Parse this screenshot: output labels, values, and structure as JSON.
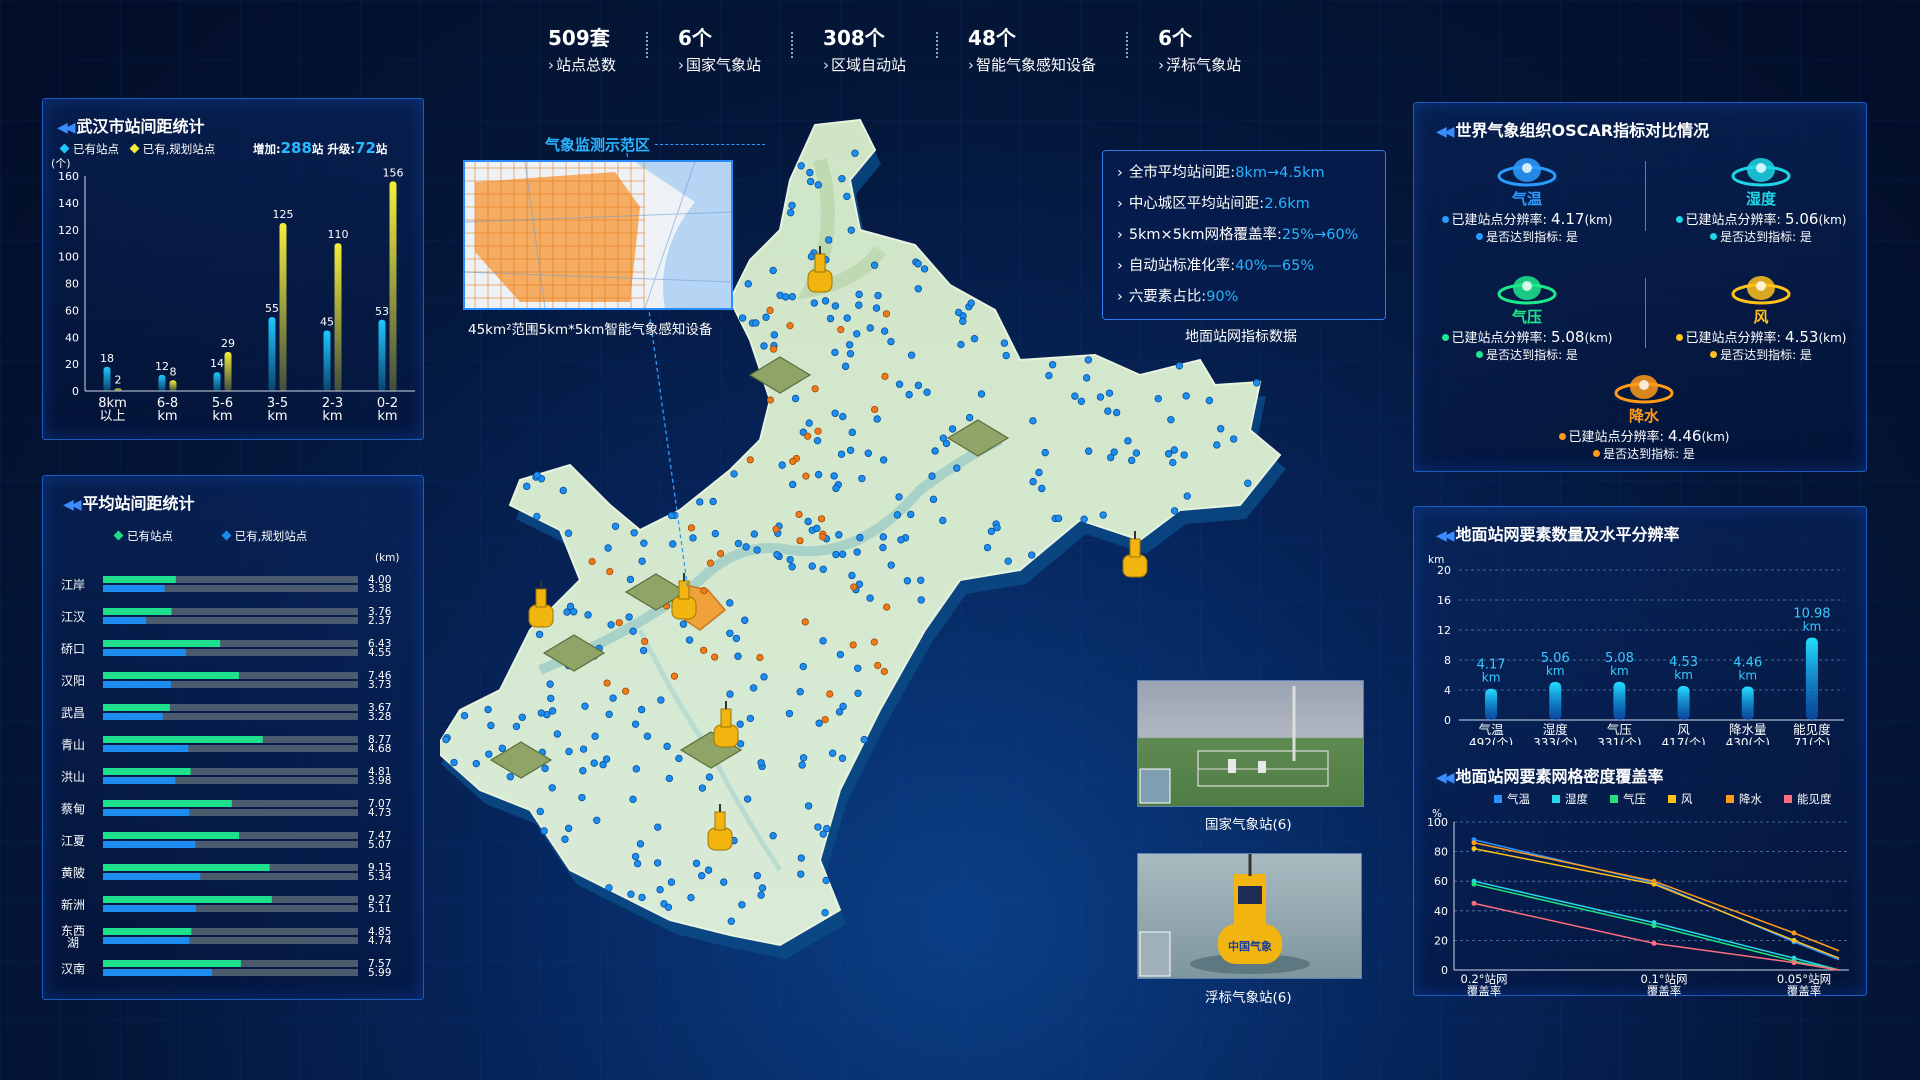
{
  "stats": [
    {
      "num": "509套",
      "label": "站点总数"
    },
    {
      "num": "6个",
      "label": "国家气象站"
    },
    {
      "num": "308个",
      "label": "区域自动站"
    },
    {
      "num": "48个",
      "label": "智能气象感知设备"
    },
    {
      "num": "6个",
      "label": "浮标气象站"
    }
  ],
  "station_spacing": {
    "title": "武汉市站间距统计",
    "legend_existing": "已有站点",
    "legend_planned": "已有,规划站点",
    "increase_label": "增加:",
    "increase_value": "288",
    "increase_unit": "站 升级:",
    "upgrade_value": "72",
    "upgrade_unit": "站"
  },
  "avg_spacing": {
    "title": "平均站间距统计",
    "legend_existing": "已有站点",
    "legend_planned": "已有,规划站点",
    "unit": "(km)"
  },
  "map": {
    "zone_label": "气象监测示范区",
    "inset_caption": "45km²范围5km*5km智能气象感知设备"
  },
  "network": {
    "caption": "地面站网指标数据",
    "rows": [
      {
        "k": "全市平均站间距:",
        "v": "8km→4.5km"
      },
      {
        "k": "中心城区平均站间距:",
        "v": "2.6km"
      },
      {
        "k": "5km×5km网格覆盖率:",
        "v": "25%→60%"
      },
      {
        "k": "自动站标准化率:",
        "v": "40%—65%"
      },
      {
        "k": "六要素占比:",
        "v": "90%"
      }
    ]
  },
  "photos": {
    "national": "国家气象站(6)",
    "buoy": "浮标气象站(6)",
    "buoy_text": "中国气象"
  },
  "oscar": {
    "title": "世界气象组织OSCAR指标对比情况",
    "res_label": "已建站点分辨率:",
    "unit": "(km)",
    "reach_label": "是否达到指标:",
    "items": [
      {
        "name": "气温",
        "value": "4.17",
        "reach": "是",
        "color": "#2a9bff"
      },
      {
        "name": "湿度",
        "value": "5.06",
        "reach": "是",
        "color": "#1fd6e6"
      },
      {
        "name": "气压",
        "value": "5.08",
        "reach": "是",
        "color": "#1ee88e"
      },
      {
        "name": "风",
        "value": "4.53",
        "reach": "是",
        "color": "#ffc21a"
      },
      {
        "name": "降水",
        "value": "4.46",
        "reach": "是",
        "color": "#ff9a1a"
      }
    ]
  },
  "elements": {
    "title": "地面站网要素数量及水平分辨率"
  },
  "coverage": {
    "title": "地面站网要素网格密度覆盖率"
  },
  "chart_data": [
    {
      "type": "bar",
      "title": "武汉市站间距统计",
      "ylabel": "(个)",
      "ylim": [
        0,
        160
      ],
      "yticks": [
        0,
        20,
        40,
        60,
        80,
        100,
        120,
        140,
        160
      ],
      "categories": [
        "8km以上",
        "6-8km",
        "5-6km",
        "3-5km",
        "2-3km",
        "0-2km"
      ],
      "series": [
        {
          "name": "已有站点",
          "values": [
            18,
            12,
            14,
            55,
            45,
            53
          ],
          "color": "#1ec8ff"
        },
        {
          "name": "已有,规划站点",
          "values": [
            2,
            8,
            29,
            125,
            110,
            156
          ],
          "color": "#f4ee3a"
        }
      ]
    },
    {
      "type": "bar",
      "title": "平均站间距统计",
      "xlabel": "(km)",
      "orientation": "horizontal",
      "categories": [
        "江岸",
        "江汉",
        "硚口",
        "汉阳",
        "武昌",
        "青山",
        "洪山",
        "蔡甸",
        "江夏",
        "黄陂",
        "新洲",
        "东西湖",
        "汉南"
      ],
      "series": [
        {
          "name": "已有站点",
          "values": [
            4.0,
            3.76,
            6.43,
            7.46,
            3.67,
            8.77,
            4.81,
            7.07,
            7.47,
            9.15,
            9.27,
            4.85,
            7.57
          ],
          "color": "#1ee08a"
        },
        {
          "name": "已有,规划站点",
          "values": [
            3.38,
            2.37,
            4.55,
            3.73,
            3.28,
            4.68,
            3.98,
            4.73,
            5.07,
            5.34,
            5.11,
            4.74,
            5.99
          ],
          "color": "#1c8cf0"
        }
      ]
    },
    {
      "type": "bar",
      "title": "地面站网要素数量及水平分辨率",
      "ylabel": "km",
      "ylim": [
        0,
        20
      ],
      "yticks": [
        0,
        4,
        8,
        12,
        16,
        20
      ],
      "categories": [
        "气温",
        "湿度",
        "气压",
        "风",
        "降水量",
        "能见度"
      ],
      "counts": [
        "492(个)",
        "333(个)",
        "331(个)",
        "417(个)",
        "430(个)",
        "71(个)"
      ],
      "values": [
        4.17,
        5.06,
        5.08,
        4.53,
        4.46,
        10.98
      ],
      "labels": [
        "4.17\nkm",
        "5.06\nkm",
        "5.08\nkm",
        "4.53\nkm",
        "4.46\nkm",
        "10.98\nkm"
      ]
    },
    {
      "type": "line",
      "title": "地面站网要素网格密度覆盖率",
      "ylabel": "%",
      "ylim": [
        0,
        100
      ],
      "yticks": [
        0,
        20,
        40,
        60,
        80,
        100
      ],
      "categories": [
        "0.2°站网\n覆盖率",
        "0.1°站网\n覆盖率",
        "0.05°站网\n覆盖率"
      ],
      "series": [
        {
          "name": "气温",
          "color": "#2a8fff",
          "values": [
            88,
            59,
            19
          ]
        },
        {
          "name": "湿度",
          "color": "#26d8e8",
          "values": [
            60,
            32,
            8
          ]
        },
        {
          "name": "气压",
          "color": "#23e07e",
          "values": [
            58,
            30,
            6
          ]
        },
        {
          "name": "风",
          "color": "#ffc21a",
          "values": [
            82,
            58,
            20
          ]
        },
        {
          "name": "降水",
          "color": "#ff9a1a",
          "values": [
            86,
            60,
            25
          ]
        },
        {
          "name": "能见度",
          "color": "#ff6e7e",
          "values": [
            45,
            18,
            5
          ]
        }
      ]
    }
  ]
}
